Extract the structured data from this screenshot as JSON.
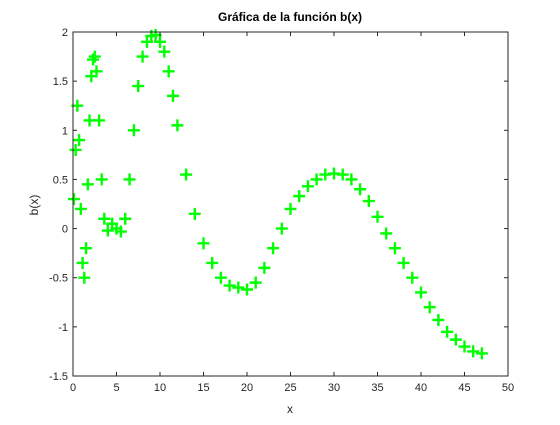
{
  "chart_data": {
    "type": "scatter",
    "title": "Gráfica de la función b(x)",
    "xlabel": "x",
    "ylabel": "b(x)",
    "xlim": [
      0,
      50
    ],
    "ylim": [
      -1.5,
      2
    ],
    "xticks": [
      "0",
      "5",
      "10",
      "15",
      "20",
      "25",
      "30",
      "35",
      "40",
      "45",
      "50"
    ],
    "yticks": [
      "-1.5",
      "-1",
      "-0.5",
      "0",
      "0.5",
      "1",
      "1.5",
      "2"
    ],
    "grid": false,
    "marker": "+",
    "color": "#00FF00",
    "series": [
      {
        "x": [
          0.1,
          0.3,
          0.5,
          0.7,
          0.9,
          1.1,
          1.3,
          1.5,
          1.7,
          1.9,
          2.1,
          2.3,
          2.5,
          2.7,
          3.0,
          3.3,
          3.6,
          4.0,
          4.5,
          5.0,
          5.5,
          6.0,
          6.5,
          7.0,
          7.5,
          8.0,
          8.5,
          9.0,
          9.5,
          10.0,
          10.5,
          11.0,
          11.5,
          12.0,
          13.0,
          14.0,
          15.0,
          16.0,
          17.0,
          18.0,
          19.0,
          20.0,
          21.0,
          22.0,
          23.0,
          24.0,
          25.0,
          26.0,
          27.0,
          28.0,
          29.0,
          30.0,
          31.0,
          32.0,
          33.0,
          34.0,
          35.0,
          36.0,
          37.0,
          38.0,
          39.0,
          40.0,
          41.0,
          42.0,
          43.0,
          44.0,
          45.0,
          46.0,
          47.0
        ],
        "y": [
          0.3,
          0.8,
          1.25,
          0.9,
          0.2,
          -0.35,
          -0.5,
          -0.2,
          0.45,
          1.1,
          1.55,
          1.72,
          1.75,
          1.6,
          1.1,
          0.5,
          0.1,
          -0.02,
          0.05,
          0.0,
          -0.03,
          0.1,
          0.5,
          1.0,
          1.45,
          1.75,
          1.9,
          1.96,
          1.97,
          1.9,
          1.8,
          1.6,
          1.35,
          1.05,
          0.55,
          0.15,
          -0.15,
          -0.35,
          -0.5,
          -0.58,
          -0.6,
          -0.62,
          -0.55,
          -0.4,
          -0.2,
          0.0,
          0.2,
          0.33,
          0.43,
          0.5,
          0.55,
          0.56,
          0.55,
          0.5,
          0.4,
          0.28,
          0.12,
          -0.05,
          -0.2,
          -0.35,
          -0.5,
          -0.65,
          -0.8,
          -0.93,
          -1.05,
          -1.13,
          -1.2,
          -1.25,
          -1.27
        ]
      }
    ]
  }
}
